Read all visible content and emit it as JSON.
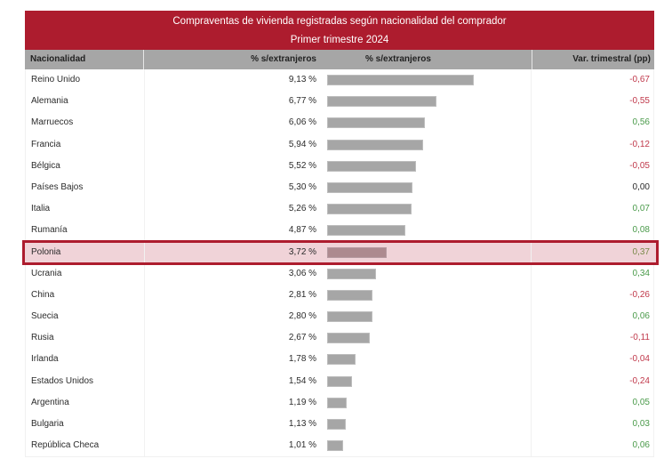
{
  "header": {
    "title": "Compraventas de vivienda registradas según nacionalidad del comprador",
    "subtitle": "Primer trimestre 2024"
  },
  "columns": {
    "name": "Nacionalidad",
    "pct": "% s/extranjeros",
    "bar": "% s/extranjeros",
    "var": "Var. trimestral (pp)"
  },
  "colors": {
    "header_bg": "#ad1c2e",
    "column_header_bg": "#a6a6a6",
    "bar": "#a6a6a6",
    "highlight_bg": "#f0d3d8",
    "highlight_border": "#ad1c2e",
    "negative": "#c0394b",
    "positive": "#4a9a4a"
  },
  "rows": [
    {
      "name": "Reino Unido",
      "pct": "9,13 %",
      "value": 9.13,
      "var": "-0,67",
      "sign": "neg"
    },
    {
      "name": "Alemania",
      "pct": "6,77 %",
      "value": 6.77,
      "var": "-0,55",
      "sign": "neg"
    },
    {
      "name": "Marruecos",
      "pct": "6,06 %",
      "value": 6.06,
      "var": "0,56",
      "sign": "pos"
    },
    {
      "name": "Francia",
      "pct": "5,94 %",
      "value": 5.94,
      "var": "-0,12",
      "sign": "neg"
    },
    {
      "name": "Bélgica",
      "pct": "5,52 %",
      "value": 5.52,
      "var": "-0,05",
      "sign": "neg"
    },
    {
      "name": "Países Bajos",
      "pct": "5,30 %",
      "value": 5.3,
      "var": "0,00",
      "sign": "zero"
    },
    {
      "name": "Italia",
      "pct": "5,26 %",
      "value": 5.26,
      "var": "0,07",
      "sign": "pos"
    },
    {
      "name": "Rumanía",
      "pct": "4,87 %",
      "value": 4.87,
      "var": "0,08",
      "sign": "pos"
    },
    {
      "name": "Polonia",
      "pct": "3,72 %",
      "value": 3.72,
      "var": "0,37",
      "sign": "pos",
      "highlight": true
    },
    {
      "name": "Ucrania",
      "pct": "3,06 %",
      "value": 3.06,
      "var": "0,34",
      "sign": "pos"
    },
    {
      "name": "China",
      "pct": "2,81 %",
      "value": 2.81,
      "var": "-0,26",
      "sign": "neg"
    },
    {
      "name": "Suecia",
      "pct": "2,80 %",
      "value": 2.8,
      "var": "0,06",
      "sign": "pos"
    },
    {
      "name": "Rusia",
      "pct": "2,67 %",
      "value": 2.67,
      "var": "-0,11",
      "sign": "neg"
    },
    {
      "name": "Irlanda",
      "pct": "1,78 %",
      "value": 1.78,
      "var": "-0,04",
      "sign": "neg"
    },
    {
      "name": "Estados Unidos",
      "pct": "1,54 %",
      "value": 1.54,
      "var": "-0,24",
      "sign": "neg"
    },
    {
      "name": "Argentina",
      "pct": "1,19 %",
      "value": 1.19,
      "var": "0,05",
      "sign": "pos"
    },
    {
      "name": "Bulgaria",
      "pct": "1,13 %",
      "value": 1.13,
      "var": "0,03",
      "sign": "pos"
    },
    {
      "name": "República Checa",
      "pct": "1,01 %",
      "value": 1.01,
      "var": "0,06",
      "sign": "pos"
    }
  ],
  "chart_data": {
    "type": "bar",
    "orientation": "horizontal",
    "title": "Compraventas de vivienda registradas según nacionalidad del comprador",
    "subtitle": "Primer trimestre 2024",
    "xlabel": "% s/extranjeros",
    "ylabel": "Nacionalidad",
    "categories": [
      "Reino Unido",
      "Alemania",
      "Marruecos",
      "Francia",
      "Bélgica",
      "Países Bajos",
      "Italia",
      "Rumanía",
      "Polonia",
      "Ucrania",
      "China",
      "Suecia",
      "Rusia",
      "Irlanda",
      "Estados Unidos",
      "Argentina",
      "Bulgaria",
      "República Checa"
    ],
    "series": [
      {
        "name": "% s/extranjeros",
        "values": [
          9.13,
          6.77,
          6.06,
          5.94,
          5.52,
          5.3,
          5.26,
          4.87,
          3.72,
          3.06,
          2.81,
          2.8,
          2.67,
          1.78,
          1.54,
          1.19,
          1.13,
          1.01
        ]
      },
      {
        "name": "Var. trimestral (pp)",
        "values": [
          -0.67,
          -0.55,
          0.56,
          -0.12,
          -0.05,
          0.0,
          0.07,
          0.08,
          0.37,
          0.34,
          -0.26,
          0.06,
          -0.11,
          -0.04,
          -0.24,
          0.05,
          0.03,
          0.06
        ]
      }
    ],
    "highlighted_category": "Polonia",
    "grid": false,
    "legend": "none"
  }
}
